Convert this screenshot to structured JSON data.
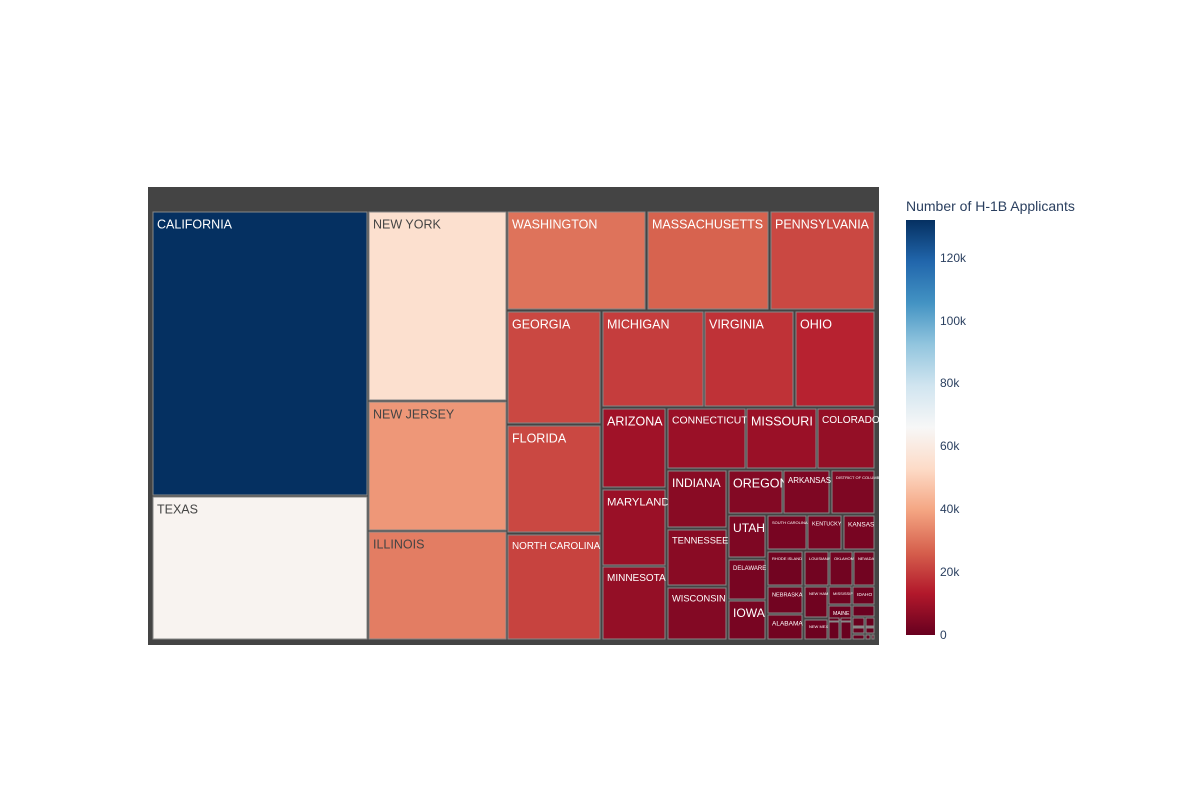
{
  "chart_data": {
    "type": "treemap",
    "colorbar": {
      "title": "Number of H-1B Applicants",
      "range": [
        0,
        132000
      ],
      "ticks": [
        "0",
        "20k",
        "40k",
        "60k",
        "80k",
        "100k",
        "120k"
      ],
      "tick_values": [
        0,
        20000,
        40000,
        60000,
        80000,
        100000,
        120000
      ],
      "colorscale": [
        "#67001f",
        "#b2182b",
        "#d6604d",
        "#f4a582",
        "#fddbc7",
        "#f7f7f7",
        "#d1e5f0",
        "#92c5de",
        "#4393c3",
        "#2166ac",
        "#053061"
      ]
    },
    "states": [
      {
        "label": "CALIFORNIA",
        "value": 132000
      },
      {
        "label": "TEXAS",
        "value": 64000
      },
      {
        "label": "NEW YORK",
        "value": 55000
      },
      {
        "label": "NEW JERSEY",
        "value": 37000
      },
      {
        "label": "ILLINOIS",
        "value": 32000
      },
      {
        "label": "WASHINGTON",
        "value": 30000
      },
      {
        "label": "MASSACHUSETTS",
        "value": 27000
      },
      {
        "label": "PENNSYLVANIA",
        "value": 22000
      },
      {
        "label": "GEORGIA",
        "value": 22000
      },
      {
        "label": "FLORIDA",
        "value": 22000
      },
      {
        "label": "NORTH CAROLINA",
        "value": 21000
      },
      {
        "label": "MICHIGAN",
        "value": 20000
      },
      {
        "label": "VIRGINIA",
        "value": 18000
      },
      {
        "label": "OHIO",
        "value": 15000
      },
      {
        "label": "ARIZONA",
        "value": 10000
      },
      {
        "label": "CONNECTICUT",
        "value": 9000
      },
      {
        "label": "MISSOURI",
        "value": 9000
      },
      {
        "label": "COLORADO",
        "value": 8000
      },
      {
        "label": "MARYLAND",
        "value": 9000
      },
      {
        "label": "MINNESOTA",
        "value": 8000
      },
      {
        "label": "INDIANA",
        "value": 6000
      },
      {
        "label": "TENNESSEE",
        "value": 6000
      },
      {
        "label": "WISCONSIN",
        "value": 5000
      },
      {
        "label": "OREGON",
        "value": 5000
      },
      {
        "label": "ARKANSAS",
        "value": 4000
      },
      {
        "label": "DISTRICT OF COLUMBIA",
        "value": 4000
      },
      {
        "label": "UTAH",
        "value": 4000
      },
      {
        "label": "SOUTH CAROLINA",
        "value": 3000
      },
      {
        "label": "KENTUCKY",
        "value": 3000
      },
      {
        "label": "KANSAS",
        "value": 3000
      },
      {
        "label": "DELAWARE",
        "value": 3000
      },
      {
        "label": "IOWA",
        "value": 3000
      },
      {
        "label": "RHODE ISLAND",
        "value": 2000
      },
      {
        "label": "LOUISIANA",
        "value": 2000
      },
      {
        "label": "OKLAHOMA",
        "value": 2000
      },
      {
        "label": "NEVADA",
        "value": 2000
      },
      {
        "label": "NEBRASKA",
        "value": 2000
      },
      {
        "label": "ALABAMA",
        "value": 2000
      },
      {
        "label": "NEW HAMPSHIRE",
        "value": 1500
      },
      {
        "label": "MISSISSIPPI",
        "value": 1500
      },
      {
        "label": "IDAHO",
        "value": 1200
      },
      {
        "label": "NEW MEXICO",
        "value": 1000
      },
      {
        "label": "MAINE",
        "value": 800
      },
      {
        "label": "",
        "value": 600
      },
      {
        "label": "",
        "value": 500
      },
      {
        "label": "",
        "value": 400
      },
      {
        "label": "",
        "value": 400
      },
      {
        "label": "",
        "value": 300
      },
      {
        "label": "",
        "value": 300
      },
      {
        "label": "",
        "value": 200
      },
      {
        "label": "",
        "value": 200
      },
      {
        "label": "",
        "value": 150
      },
      {
        "label": "",
        "value": 100
      },
      {
        "label": "",
        "value": 100
      },
      {
        "label": "",
        "value": 80
      },
      {
        "label": "",
        "value": 60
      },
      {
        "label": "",
        "value": 40
      }
    ]
  }
}
